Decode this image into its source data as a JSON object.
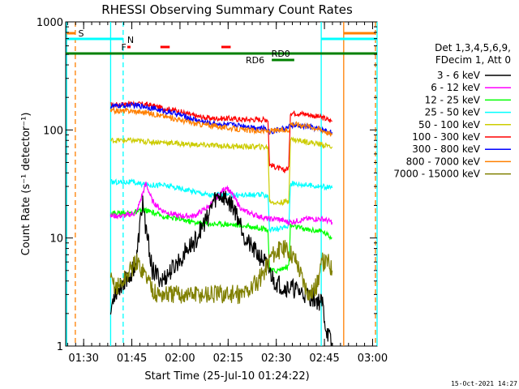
{
  "chart_data": {
    "type": "line",
    "title": "RHESSI Observing Summary Count Rates",
    "xlabel": "Start Time (25-Jul-10 01:24:22)",
    "ylabel": "Count Rate (s⁻¹ detector⁻¹)",
    "y_scale": "log",
    "ylim": [
      1,
      1000
    ],
    "x_minutes_range": [
      0,
      97
    ],
    "x_ticks": [
      {
        "label": "01:30",
        "minute": 5.6
      },
      {
        "label": "01:45",
        "minute": 20.6
      },
      {
        "label": "02:00",
        "minute": 35.6
      },
      {
        "label": "02:15",
        "minute": 50.6
      },
      {
        "label": "02:30",
        "minute": 65.6
      },
      {
        "label": "02:45",
        "minute": 80.6
      },
      {
        "label": "03:00",
        "minute": 95.6
      }
    ],
    "y_ticks": [
      {
        "label": "1",
        "value": 1
      },
      {
        "label": "10",
        "value": 10
      },
      {
        "label": "100",
        "value": 100
      },
      {
        "label": "1000",
        "value": 1000
      }
    ],
    "legend": {
      "placement": "right",
      "header1": "Det 1,3,4,5,6,9,",
      "header2": "FDecim 1, Att 0",
      "entries": [
        {
          "label": "3 - 6 keV",
          "color": "#000000"
        },
        {
          "label": "6 - 12 keV",
          "color": "#ff00ff"
        },
        {
          "label": "12 - 25 keV",
          "color": "#00ff00"
        },
        {
          "label": "25 - 50 keV",
          "color": "#00ffff"
        },
        {
          "label": "50 - 100 keV",
          "color": "#cccc00"
        },
        {
          "label": "100 - 300 keV",
          "color": "#ff0000"
        },
        {
          "label": "300 - 800 keV",
          "color": "#0000ff"
        },
        {
          "label": "800 - 7000 keV",
          "color": "#ff8000"
        },
        {
          "label": "7000 - 15000 keV",
          "color": "#808000"
        }
      ]
    },
    "series": [
      {
        "name": "100 - 300 keV",
        "color": "#ff0000",
        "points": [
          [
            14,
            170
          ],
          [
            20,
            175
          ],
          [
            25,
            172
          ],
          [
            30,
            160
          ],
          [
            35,
            150
          ],
          [
            40,
            135
          ],
          [
            45,
            128
          ],
          [
            50,
            128
          ],
          [
            55,
            125
          ],
          [
            60,
            125
          ],
          [
            63,
            125
          ],
          [
            63.5,
            48
          ],
          [
            68,
            42
          ],
          [
            69.5,
            45
          ],
          [
            70,
            145
          ],
          [
            75,
            140
          ],
          [
            80,
            130
          ],
          [
            83,
            120
          ]
        ]
      },
      {
        "name": "300 - 800 keV",
        "color": "#0000ff",
        "points": [
          [
            14,
            165
          ],
          [
            20,
            170
          ],
          [
            25,
            165
          ],
          [
            30,
            150
          ],
          [
            35,
            140
          ],
          [
            40,
            125
          ],
          [
            45,
            115
          ],
          [
            50,
            112
          ],
          [
            55,
            110
          ],
          [
            60,
            105
          ],
          [
            63,
            102
          ],
          [
            63.5,
            95
          ],
          [
            66,
            100
          ],
          [
            69.5,
            105
          ],
          [
            70,
            110
          ],
          [
            75,
            108
          ],
          [
            80,
            100
          ],
          [
            83,
            95
          ]
        ]
      },
      {
        "name": "800 - 7000 keV",
        "color": "#ff8000",
        "points": [
          [
            14,
            150
          ],
          [
            20,
            150
          ],
          [
            25,
            145
          ],
          [
            30,
            135
          ],
          [
            35,
            125
          ],
          [
            40,
            115
          ],
          [
            45,
            110
          ],
          [
            50,
            105
          ],
          [
            55,
            100
          ],
          [
            60,
            98
          ],
          [
            63,
            97
          ],
          [
            63.5,
            98
          ],
          [
            69.5,
            100
          ],
          [
            70,
            115
          ],
          [
            75,
            110
          ],
          [
            80,
            100
          ],
          [
            83,
            90
          ]
        ]
      },
      {
        "name": "50 - 100 keV",
        "color": "#cccc00",
        "points": [
          [
            14,
            80
          ],
          [
            20,
            80
          ],
          [
            25,
            78
          ],
          [
            30,
            77
          ],
          [
            35,
            75
          ],
          [
            40,
            73
          ],
          [
            45,
            72
          ],
          [
            50,
            71
          ],
          [
            55,
            70
          ],
          [
            60,
            70
          ],
          [
            63,
            69
          ],
          [
            63.5,
            22
          ],
          [
            66,
            21
          ],
          [
            69.5,
            22
          ],
          [
            70,
            82
          ],
          [
            75,
            78
          ],
          [
            80,
            73
          ],
          [
            83,
            70
          ]
        ]
      },
      {
        "name": "25 - 50 keV",
        "color": "#00ffff",
        "points": [
          [
            14,
            33
          ],
          [
            20,
            33
          ],
          [
            25,
            31
          ],
          [
            30,
            31
          ],
          [
            35,
            29
          ],
          [
            40,
            27
          ],
          [
            45,
            25
          ],
          [
            50,
            25
          ],
          [
            55,
            25
          ],
          [
            60,
            25
          ],
          [
            63,
            25
          ],
          [
            63.5,
            12
          ],
          [
            66,
            12
          ],
          [
            69.5,
            13
          ],
          [
            70,
            32
          ],
          [
            75,
            31
          ],
          [
            80,
            30
          ],
          [
            83,
            29
          ]
        ]
      },
      {
        "name": "12 - 25 keV",
        "color": "#00ff00",
        "points": [
          [
            14,
            17
          ],
          [
            20,
            17
          ],
          [
            25,
            18
          ],
          [
            30,
            16
          ],
          [
            35,
            15
          ],
          [
            40,
            14
          ],
          [
            45,
            13.5
          ],
          [
            50,
            13.5
          ],
          [
            55,
            13
          ],
          [
            60,
            12.5
          ],
          [
            63,
            12
          ],
          [
            63.5,
            5
          ],
          [
            66,
            5
          ],
          [
            69.5,
            5.5
          ],
          [
            70,
            13
          ],
          [
            75,
            12
          ],
          [
            80,
            11.5
          ],
          [
            83,
            10
          ]
        ]
      },
      {
        "name": "6 - 12 keV",
        "color": "#ff00ff",
        "points": [
          [
            14,
            16
          ],
          [
            18,
            16
          ],
          [
            22,
            17
          ],
          [
            25,
            32
          ],
          [
            27,
            22
          ],
          [
            30,
            18
          ],
          [
            35,
            16
          ],
          [
            40,
            16
          ],
          [
            45,
            20
          ],
          [
            50,
            30
          ],
          [
            52,
            25
          ],
          [
            55,
            18
          ],
          [
            60,
            16
          ],
          [
            63,
            15
          ],
          [
            66,
            15
          ],
          [
            69.5,
            14
          ],
          [
            70,
            14
          ],
          [
            75,
            15
          ],
          [
            80,
            15
          ],
          [
            83,
            14
          ]
        ]
      },
      {
        "name": "3 - 6 keV",
        "color": "#000000",
        "points": [
          [
            14,
            2
          ],
          [
            15,
            3
          ],
          [
            17,
            3.5
          ],
          [
            18,
            4
          ],
          [
            20,
            4.5
          ],
          [
            22,
            6
          ],
          [
            23,
            12
          ],
          [
            24,
            22
          ],
          [
            25,
            12
          ],
          [
            26,
            8
          ],
          [
            27,
            5
          ],
          [
            30,
            4
          ],
          [
            33,
            5
          ],
          [
            35,
            6
          ],
          [
            38,
            8
          ],
          [
            40,
            9
          ],
          [
            42,
            12
          ],
          [
            44,
            15
          ],
          [
            45,
            18
          ],
          [
            46,
            22
          ],
          [
            48,
            25
          ],
          [
            50,
            23
          ],
          [
            52,
            20
          ],
          [
            54,
            15
          ],
          [
            56,
            10
          ],
          [
            58,
            8
          ],
          [
            60,
            7
          ],
          [
            62,
            6
          ],
          [
            65,
            4
          ],
          [
            68,
            3.5
          ],
          [
            70,
            3.5
          ],
          [
            75,
            3
          ],
          [
            80,
            2.5
          ],
          [
            81,
            1.5
          ],
          [
            83,
            1
          ]
        ]
      },
      {
        "name": "7000 - 15000 keV",
        "color": "#808000",
        "points": [
          [
            14,
            4
          ],
          [
            16,
            3.5
          ],
          [
            18,
            4
          ],
          [
            20,
            5
          ],
          [
            22,
            6
          ],
          [
            24,
            5
          ],
          [
            26,
            4
          ],
          [
            28,
            3
          ],
          [
            30,
            3
          ],
          [
            34,
            3
          ],
          [
            38,
            3
          ],
          [
            42,
            3
          ],
          [
            46,
            3
          ],
          [
            50,
            3
          ],
          [
            55,
            3
          ],
          [
            58,
            3.5
          ],
          [
            60,
            4
          ],
          [
            62,
            5
          ],
          [
            64,
            7
          ],
          [
            66,
            7.5
          ],
          [
            68,
            8
          ],
          [
            70,
            7.5
          ],
          [
            72,
            6
          ],
          [
            74,
            4
          ],
          [
            76,
            3
          ],
          [
            78,
            3.5
          ],
          [
            80,
            6
          ],
          [
            82,
            6
          ],
          [
            83,
            5
          ]
        ]
      }
    ],
    "annotations": [
      {
        "label": "S",
        "color": "#ff8000",
        "minute": 4.8
      },
      {
        "label": "N",
        "color": "#00ffff",
        "minute": 20.2
      },
      {
        "label": "F",
        "color": "#ff0000",
        "minute": 18.1
      },
      {
        "label": "RD0",
        "color": "#008000",
        "minute": 67
      },
      {
        "label": "RD6",
        "color": "#008000",
        "minute": 59
      }
    ],
    "vertical_lines": [
      {
        "minute": 0.3,
        "color": "#00ffff",
        "style": "solid"
      },
      {
        "minute": 3,
        "color": "#ff8000",
        "style": "dashed"
      },
      {
        "minute": 14,
        "color": "#00ffff",
        "style": "solid"
      },
      {
        "minute": 17.9,
        "color": "#00ffff",
        "style": "dashed"
      },
      {
        "minute": 79.6,
        "color": "#00ffff",
        "style": "solid"
      },
      {
        "minute": 86.6,
        "color": "#ff8000",
        "style": "solid"
      },
      {
        "minute": 96.5,
        "color": "#ff8000",
        "style": "dashed"
      },
      {
        "minute": 97,
        "color": "#00ffff",
        "style": "solid"
      }
    ],
    "flag_bars": [
      {
        "name": "saa",
        "color": "#ff8000",
        "row": 0,
        "segments": [
          [
            0.3,
            3
          ]
        ]
      },
      {
        "name": "saa-late",
        "color": "#ff8000",
        "row": 0,
        "segments": [
          [
            86.6,
            96.5
          ]
        ]
      },
      {
        "name": "night",
        "color": "#00ffff",
        "row": 1,
        "segments": [
          [
            0.3,
            17.9
          ],
          [
            79.6,
            97
          ]
        ]
      },
      {
        "name": "flare",
        "color": "#ff0000",
        "row": 2,
        "segments": [
          [
            19.2,
            20.2
          ],
          [
            29.5,
            32.4
          ],
          [
            48.5,
            51.4
          ]
        ]
      },
      {
        "name": "rd0",
        "color": "#008000",
        "row": 3,
        "segments": [
          [
            0,
            97
          ]
        ]
      },
      {
        "name": "rd6",
        "color": "#008000",
        "row": 4,
        "segments": [
          [
            64.2,
            71.2
          ]
        ]
      }
    ]
  },
  "footer": {
    "timestamp": "15-Oct-2021 14:27"
  }
}
